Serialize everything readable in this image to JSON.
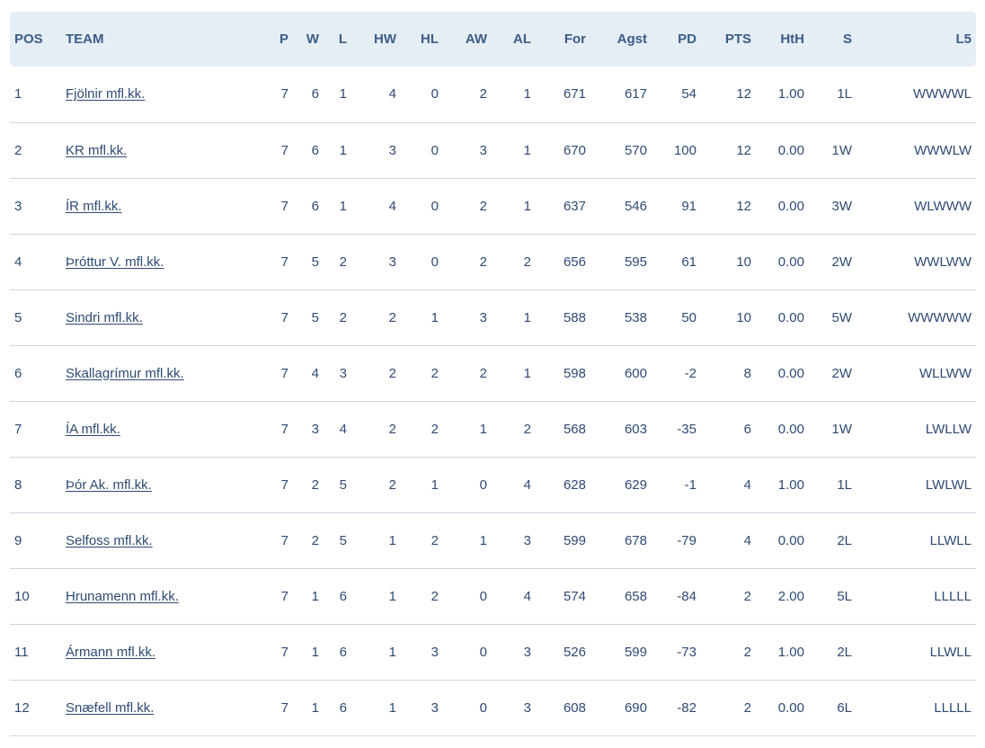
{
  "standings": {
    "headers": {
      "pos": "POS",
      "team": "TEAM",
      "p": "P",
      "w": "W",
      "l": "L",
      "hw": "HW",
      "hl": "HL",
      "aw": "AW",
      "al": "AL",
      "for": "For",
      "agst": "Agst",
      "pd": "PD",
      "pts": "PTS",
      "hth": "HtH",
      "s": "S",
      "l5": "L5"
    },
    "rows": [
      {
        "pos": "1",
        "team": "Fjölnir mfl.kk.",
        "p": "7",
        "w": "6",
        "l": "1",
        "hw": "4",
        "hl": "0",
        "aw": "2",
        "al": "1",
        "for": "671",
        "agst": "617",
        "pd": "54",
        "pts": "12",
        "hth": "1.00",
        "s": "1L",
        "l5": "WWWWL"
      },
      {
        "pos": "2",
        "team": "KR mfl.kk.",
        "p": "7",
        "w": "6",
        "l": "1",
        "hw": "3",
        "hl": "0",
        "aw": "3",
        "al": "1",
        "for": "670",
        "agst": "570",
        "pd": "100",
        "pts": "12",
        "hth": "0.00",
        "s": "1W",
        "l5": "WWWLW"
      },
      {
        "pos": "3",
        "team": "ÍR mfl.kk.",
        "p": "7",
        "w": "6",
        "l": "1",
        "hw": "4",
        "hl": "0",
        "aw": "2",
        "al": "1",
        "for": "637",
        "agst": "546",
        "pd": "91",
        "pts": "12",
        "hth": "0.00",
        "s": "3W",
        "l5": "WLWWW"
      },
      {
        "pos": "4",
        "team": "Þróttur V. mfl.kk.",
        "p": "7",
        "w": "5",
        "l": "2",
        "hw": "3",
        "hl": "0",
        "aw": "2",
        "al": "2",
        "for": "656",
        "agst": "595",
        "pd": "61",
        "pts": "10",
        "hth": "0.00",
        "s": "2W",
        "l5": "WWLWW"
      },
      {
        "pos": "5",
        "team": "Sindri mfl.kk.",
        "p": "7",
        "w": "5",
        "l": "2",
        "hw": "2",
        "hl": "1",
        "aw": "3",
        "al": "1",
        "for": "588",
        "agst": "538",
        "pd": "50",
        "pts": "10",
        "hth": "0.00",
        "s": "5W",
        "l5": "WWWWW"
      },
      {
        "pos": "6",
        "team": "Skallagrímur mfl.kk.",
        "p": "7",
        "w": "4",
        "l": "3",
        "hw": "2",
        "hl": "2",
        "aw": "2",
        "al": "1",
        "for": "598",
        "agst": "600",
        "pd": "-2",
        "pts": "8",
        "hth": "0.00",
        "s": "2W",
        "l5": "WLLWW"
      },
      {
        "pos": "7",
        "team": "ÍA mfl.kk.",
        "p": "7",
        "w": "3",
        "l": "4",
        "hw": "2",
        "hl": "2",
        "aw": "1",
        "al": "2",
        "for": "568",
        "agst": "603",
        "pd": "-35",
        "pts": "6",
        "hth": "0.00",
        "s": "1W",
        "l5": "LWLLW"
      },
      {
        "pos": "8",
        "team": "Þór Ak. mfl.kk.",
        "p": "7",
        "w": "2",
        "l": "5",
        "hw": "2",
        "hl": "1",
        "aw": "0",
        "al": "4",
        "for": "628",
        "agst": "629",
        "pd": "-1",
        "pts": "4",
        "hth": "1.00",
        "s": "1L",
        "l5": "LWLWL"
      },
      {
        "pos": "9",
        "team": "Selfoss mfl.kk.",
        "p": "7",
        "w": "2",
        "l": "5",
        "hw": "1",
        "hl": "2",
        "aw": "1",
        "al": "3",
        "for": "599",
        "agst": "678",
        "pd": "-79",
        "pts": "4",
        "hth": "0.00",
        "s": "2L",
        "l5": "LLWLL"
      },
      {
        "pos": "10",
        "team": "Hrunamenn mfl.kk.",
        "p": "7",
        "w": "1",
        "l": "6",
        "hw": "1",
        "hl": "2",
        "aw": "0",
        "al": "4",
        "for": "574",
        "agst": "658",
        "pd": "-84",
        "pts": "2",
        "hth": "2.00",
        "s": "5L",
        "l5": "LLLLL"
      },
      {
        "pos": "11",
        "team": "Ármann mfl.kk.",
        "p": "7",
        "w": "1",
        "l": "6",
        "hw": "1",
        "hl": "3",
        "aw": "0",
        "al": "3",
        "for": "526",
        "agst": "599",
        "pd": "-73",
        "pts": "2",
        "hth": "1.00",
        "s": "2L",
        "l5": "LLWLL"
      },
      {
        "pos": "12",
        "team": "Snæfell mfl.kk.",
        "p": "7",
        "w": "1",
        "l": "6",
        "hw": "1",
        "hl": "3",
        "aw": "0",
        "al": "3",
        "for": "608",
        "agst": "690",
        "pd": "-82",
        "pts": "2",
        "hth": "0.00",
        "s": "6L",
        "l5": "LLLLL"
      }
    ]
  }
}
